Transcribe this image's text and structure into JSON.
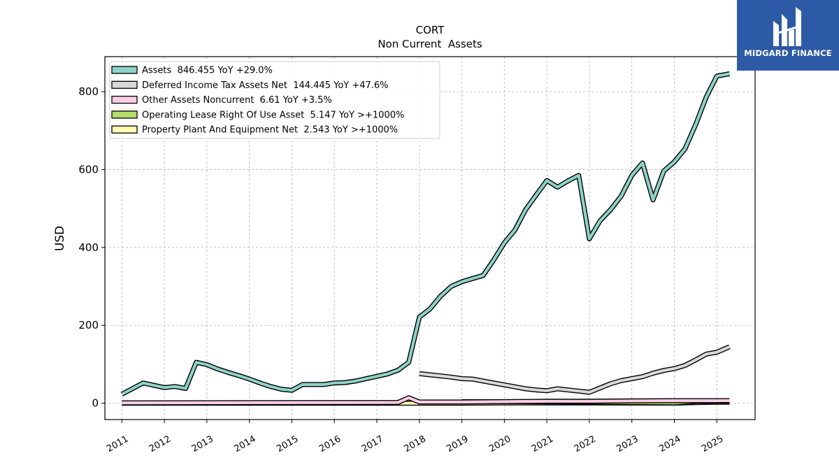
{
  "logo": {
    "text": "MIDGARD FINANCE",
    "icon": "midgard-logo-icon",
    "color": "#2d5aa6"
  },
  "chart_data": {
    "type": "line",
    "title": "CORT",
    "subtitle": "Non Current  Assets",
    "ylabel": "USD",
    "xlabel": "",
    "xlim": [
      2010.6,
      2025.9
    ],
    "ylim": [
      -42,
      890
    ],
    "yticks": [
      0,
      200,
      400,
      600,
      800
    ],
    "xticks": [
      "2011",
      "2012",
      "2013",
      "2014",
      "2015",
      "2016",
      "2017",
      "2018",
      "2019",
      "2020",
      "2021",
      "2022",
      "2023",
      "2024",
      "2025"
    ],
    "grid": true,
    "legend_position": "top-left",
    "series": [
      {
        "name": "Assets  846.455 YoY +29.0%",
        "color": "#8dd3c7",
        "points": [
          [
            2011.0,
            23
          ],
          [
            2011.5,
            52
          ],
          [
            2012.0,
            40
          ],
          [
            2012.25,
            43
          ],
          [
            2012.5,
            38
          ],
          [
            2012.75,
            105
          ],
          [
            2013.0,
            99
          ],
          [
            2013.25,
            88
          ],
          [
            2013.5,
            79
          ],
          [
            2013.75,
            71
          ],
          [
            2014.0,
            62
          ],
          [
            2014.25,
            52
          ],
          [
            2014.5,
            43
          ],
          [
            2014.75,
            36
          ],
          [
            2015.0,
            33
          ],
          [
            2015.25,
            48
          ],
          [
            2015.5,
            48
          ],
          [
            2015.75,
            48
          ],
          [
            2016.0,
            52
          ],
          [
            2016.25,
            53
          ],
          [
            2016.5,
            57
          ],
          [
            2016.75,
            63
          ],
          [
            2017.0,
            69
          ],
          [
            2017.25,
            75
          ],
          [
            2017.5,
            85
          ],
          [
            2017.75,
            105
          ],
          [
            2018.0,
            221
          ],
          [
            2018.25,
            242
          ],
          [
            2018.5,
            275
          ],
          [
            2018.75,
            300
          ],
          [
            2019.0,
            312
          ],
          [
            2019.25,
            320
          ],
          [
            2019.5,
            328
          ],
          [
            2019.75,
            368
          ],
          [
            2020.0,
            412
          ],
          [
            2020.25,
            445
          ],
          [
            2020.5,
            497
          ],
          [
            2020.75,
            535
          ],
          [
            2021.0,
            572
          ],
          [
            2021.25,
            555
          ],
          [
            2021.5,
            571
          ],
          [
            2021.75,
            585
          ],
          [
            2022.0,
            422
          ],
          [
            2022.25,
            468
          ],
          [
            2022.5,
            497
          ],
          [
            2022.75,
            532
          ],
          [
            2023.0,
            585
          ],
          [
            2023.25,
            617
          ],
          [
            2023.5,
            522
          ],
          [
            2023.75,
            596
          ],
          [
            2024.0,
            620
          ],
          [
            2024.25,
            653
          ],
          [
            2024.5,
            715
          ],
          [
            2024.75,
            786
          ],
          [
            2025.0,
            840
          ],
          [
            2025.3,
            846
          ]
        ]
      },
      {
        "name": "Deferred Income Tax Assets Net  144.445 YoY +47.6%",
        "color": "#d9d9d9",
        "points": [
          [
            2018.0,
            76
          ],
          [
            2018.25,
            73
          ],
          [
            2018.5,
            70
          ],
          [
            2018.75,
            67
          ],
          [
            2019.0,
            63
          ],
          [
            2019.25,
            62
          ],
          [
            2019.5,
            57
          ],
          [
            2019.75,
            52
          ],
          [
            2020.0,
            47
          ],
          [
            2020.25,
            42
          ],
          [
            2020.5,
            37
          ],
          [
            2020.75,
            34
          ],
          [
            2021.0,
            32
          ],
          [
            2021.25,
            37
          ],
          [
            2021.5,
            34
          ],
          [
            2021.75,
            31
          ],
          [
            2022.0,
            28
          ],
          [
            2022.25,
            39
          ],
          [
            2022.5,
            50
          ],
          [
            2022.75,
            58
          ],
          [
            2023.0,
            63
          ],
          [
            2023.25,
            68
          ],
          [
            2023.5,
            77
          ],
          [
            2023.75,
            84
          ],
          [
            2024.0,
            89
          ],
          [
            2024.25,
            97
          ],
          [
            2024.5,
            111
          ],
          [
            2024.75,
            126
          ],
          [
            2025.0,
            131
          ],
          [
            2025.3,
            145
          ]
        ]
      },
      {
        "name": "Other Assets Noncurrent  6.61 YoY +3.5%",
        "color": "#fccde5",
        "points": [
          [
            2011.0,
            1
          ],
          [
            2017.5,
            2
          ],
          [
            2017.75,
            14
          ],
          [
            2018.0,
            3
          ],
          [
            2019.0,
            3
          ],
          [
            2020.0,
            4
          ],
          [
            2021.0,
            5
          ],
          [
            2022.0,
            5
          ],
          [
            2023.0,
            6
          ],
          [
            2024.0,
            6.4
          ],
          [
            2025.0,
            6.4
          ],
          [
            2025.3,
            6.61
          ]
        ]
      },
      {
        "name": "Operating Lease Right Of Use Asset  5.147 YoY >+1000%",
        "color": "#b3de69",
        "points": [
          [
            2019.0,
            4
          ],
          [
            2020.0,
            4
          ],
          [
            2021.0,
            3.5
          ],
          [
            2022.0,
            2.5
          ],
          [
            2023.0,
            1.5
          ],
          [
            2024.0,
            0.5
          ],
          [
            2024.5,
            4.5
          ],
          [
            2025.0,
            5
          ],
          [
            2025.3,
            5.147
          ]
        ]
      },
      {
        "name": "Property Plant And Equipment Net  2.543 YoY >+1000%",
        "color": "#ffffb3",
        "points": [
          [
            2011.0,
            0
          ],
          [
            2019.0,
            0
          ],
          [
            2020.0,
            0.6
          ],
          [
            2021.0,
            0.8
          ],
          [
            2022.0,
            0.6
          ],
          [
            2023.0,
            0.4
          ],
          [
            2024.0,
            0.2
          ],
          [
            2024.5,
            1.5
          ],
          [
            2025.0,
            2.5
          ],
          [
            2025.3,
            2.543
          ]
        ]
      }
    ]
  }
}
